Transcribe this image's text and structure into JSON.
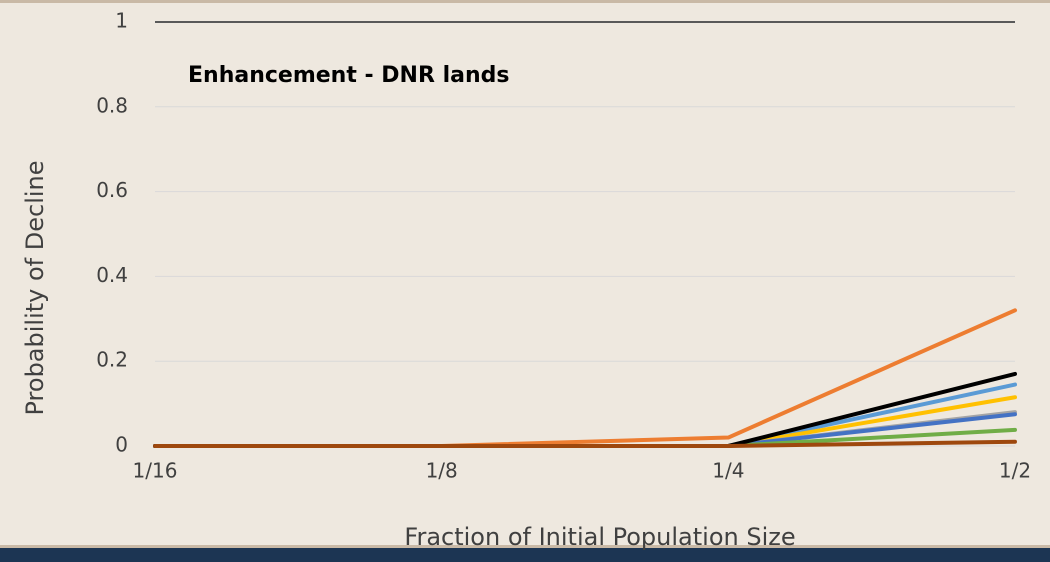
{
  "chart_data": {
    "type": "line",
    "annotation": "Enhancement - DNR lands",
    "x_label": "Fraction of Initial Population Size",
    "y_label": "Probability of Decline",
    "categories": [
      "1/16",
      "1/8",
      "1/4",
      "1/2"
    ],
    "series": [
      {
        "color": "#ed7d31",
        "values": [
          0,
          0,
          0.02,
          0.32
        ]
      },
      {
        "color": "#5b9bd5",
        "values": [
          0,
          0,
          0,
          0.145
        ]
      },
      {
        "color": "#ffc000",
        "values": [
          0,
          0,
          0,
          0.115
        ]
      },
      {
        "color": "#a5a5a5",
        "values": [
          0,
          0,
          0,
          0.08
        ]
      },
      {
        "color": "#4472c4",
        "values": [
          0,
          0,
          0,
          0.075
        ]
      },
      {
        "color": "#70ad47",
        "values": [
          0,
          0,
          0,
          0.038
        ]
      },
      {
        "color": "#000000",
        "values": [
          0,
          0,
          0,
          0.17
        ]
      },
      {
        "color": "#9e480e",
        "values": [
          0,
          0,
          0,
          0.01
        ]
      }
    ],
    "ylim": [
      0,
      1
    ],
    "yticks": [
      0,
      0.2,
      0.4,
      0.6,
      0.8,
      1
    ],
    "grid": true
  }
}
